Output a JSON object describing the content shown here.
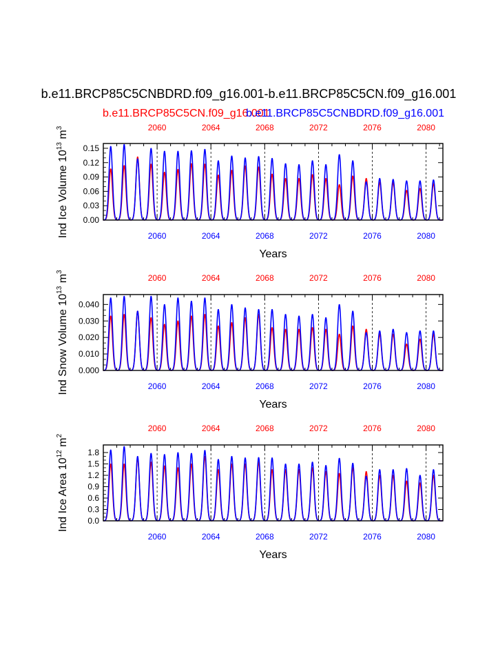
{
  "figure": {
    "title": "b.e11.BRCP85C5CNBDRD.f09_g16.001-b.e11.BRCP85C5CN.f09_g16.001",
    "legend_red": "b.e11.BRCP85C5CN.f09_g16.001",
    "legend_blue": "b.e11.BRCP85C5CNBDRD.f09_g16.001",
    "colors": {
      "red": "#ff0000",
      "blue": "#0000ff",
      "axis": "#000000"
    }
  },
  "chart_data": [
    {
      "type": "line",
      "id": "ice-volume",
      "title": "",
      "xlabel": "Years",
      "ylabel": "Ind Ice Volume 10^13 m^3",
      "ylabel_parts": {
        "base": "Ind Ice Volume 10",
        "exp1": "13",
        "mid": " m",
        "exp2": "3"
      },
      "xlim": [
        2056.0,
        2081.25
      ],
      "ylim": [
        0,
        0.16
      ],
      "yticks": [
        0.0,
        0.03,
        0.06,
        0.09,
        0.12,
        0.15
      ],
      "yticklabels": [
        "0.00",
        "0.03",
        "0.06",
        "0.09",
        "0.12",
        "0.15"
      ],
      "xticks": [
        2060,
        2064,
        2068,
        2072,
        2076,
        2080
      ],
      "xticklabels": [
        "2060",
        "2064",
        "2068",
        "2072",
        "2076",
        "2080"
      ],
      "annual_peaks_x": [
        2056.55,
        2057.55,
        2058.55,
        2059.55,
        2060.55,
        2061.55,
        2062.55,
        2063.55,
        2064.55,
        2065.55,
        2066.55,
        2067.55,
        2068.55,
        2069.55,
        2070.55,
        2071.55,
        2072.55,
        2073.55,
        2074.55,
        2075.55,
        2076.55,
        2077.55,
        2078.55,
        2079.55,
        2080.55
      ],
      "series": [
        {
          "name": "b.e11.BRCP85C5CN.f09_g16.001",
          "color": "#ff0000",
          "values": [
            0.107,
            0.114,
            0.132,
            0.117,
            0.1,
            0.106,
            0.118,
            0.117,
            0.094,
            0.104,
            0.113,
            0.111,
            0.096,
            0.087,
            0.087,
            0.095,
            0.087,
            0.074,
            0.092,
            0.087,
            0.079,
            0.078,
            0.062,
            0.066,
            0.076
          ]
        },
        {
          "name": "b.e11.BRCP85C5CNBDRD.f09_g16.001",
          "color": "#0000ff",
          "values": [
            0.154,
            0.158,
            0.128,
            0.15,
            0.144,
            0.144,
            0.145,
            0.148,
            0.124,
            0.134,
            0.13,
            0.133,
            0.129,
            0.118,
            0.116,
            0.124,
            0.116,
            0.137,
            0.124,
            0.08,
            0.087,
            0.085,
            0.082,
            0.082,
            0.084
          ]
        }
      ]
    },
    {
      "type": "line",
      "id": "snow-volume",
      "title": "",
      "xlabel": "Years",
      "ylabel": "Ind Snow Volume 10^13 m^3",
      "ylabel_parts": {
        "base": "Ind Snow Volume 10",
        "exp1": "13",
        "mid": " m",
        "exp2": "3"
      },
      "xlim": [
        2056.0,
        2081.25
      ],
      "ylim": [
        0,
        0.046
      ],
      "yticks": [
        0.0,
        0.01,
        0.02,
        0.03,
        0.04
      ],
      "yticklabels": [
        "0.000",
        "0.010",
        "0.020",
        "0.030",
        "0.040"
      ],
      "xticks": [
        2060,
        2064,
        2068,
        2072,
        2076,
        2080
      ],
      "xticklabels": [
        "2060",
        "2064",
        "2068",
        "2072",
        "2076",
        "2080"
      ],
      "annual_peaks_x": [
        2056.55,
        2057.55,
        2058.55,
        2059.55,
        2060.55,
        2061.55,
        2062.55,
        2063.55,
        2064.55,
        2065.55,
        2066.55,
        2067.55,
        2068.55,
        2069.55,
        2070.55,
        2071.55,
        2072.55,
        2073.55,
        2074.55,
        2075.55,
        2076.55,
        2077.55,
        2078.55,
        2079.55,
        2080.55
      ],
      "series": [
        {
          "name": "b.e11.BRCP85C5CN.f09_g16.001",
          "color": "#ff0000",
          "values": [
            0.033,
            0.034,
            0.036,
            0.032,
            0.028,
            0.03,
            0.033,
            0.034,
            0.027,
            0.029,
            0.032,
            0.034,
            0.026,
            0.025,
            0.025,
            0.026,
            0.025,
            0.022,
            0.027,
            0.025,
            0.022,
            0.022,
            0.016,
            0.019,
            0.022
          ]
        },
        {
          "name": "b.e11.BRCP85C5CNBDRD.f09_g16.001",
          "color": "#0000ff",
          "values": [
            0.044,
            0.045,
            0.036,
            0.045,
            0.04,
            0.044,
            0.042,
            0.044,
            0.037,
            0.04,
            0.038,
            0.037,
            0.037,
            0.034,
            0.033,
            0.034,
            0.032,
            0.04,
            0.036,
            0.023,
            0.024,
            0.025,
            0.023,
            0.024,
            0.024
          ]
        }
      ]
    },
    {
      "type": "line",
      "id": "ice-area",
      "title": "",
      "xlabel": "Years",
      "ylabel": "Ind Ice Area 10^12 m^2",
      "ylabel_parts": {
        "base": "Ind Ice Area 10",
        "exp1": "12",
        "mid": " m",
        "exp2": "2"
      },
      "xlim": [
        2056.0,
        2081.25
      ],
      "ylim": [
        0,
        2.0
      ],
      "yticks": [
        0.0,
        0.3,
        0.6,
        0.9,
        1.2,
        1.5,
        1.8
      ],
      "yticklabels": [
        "0.0",
        "0.3",
        "0.6",
        "0.9",
        "1.2",
        "1.5",
        "1.8"
      ],
      "xticks": [
        2060,
        2064,
        2068,
        2072,
        2076,
        2080
      ],
      "xticklabels": [
        "2060",
        "2064",
        "2068",
        "2072",
        "2076",
        "2080"
      ],
      "annual_peaks_x": [
        2056.55,
        2057.55,
        2058.55,
        2059.55,
        2060.55,
        2061.55,
        2062.55,
        2063.55,
        2064.55,
        2065.55,
        2066.55,
        2067.55,
        2068.55,
        2069.55,
        2070.55,
        2071.55,
        2072.55,
        2073.55,
        2074.55,
        2075.55,
        2076.55,
        2077.55,
        2078.55,
        2079.55,
        2080.55
      ],
      "series": [
        {
          "name": "b.e11.BRCP85C5CN.f09_g16.001",
          "color": "#ff0000",
          "values": [
            1.5,
            1.5,
            1.65,
            1.55,
            1.45,
            1.4,
            1.5,
            1.7,
            1.35,
            1.5,
            1.5,
            1.55,
            1.35,
            1.35,
            1.35,
            1.4,
            1.3,
            1.25,
            1.4,
            1.3,
            1.2,
            1.2,
            1.05,
            1.0,
            1.2
          ]
        },
        {
          "name": "b.e11.BRCP85C5CNBDRD.f09_g16.001",
          "color": "#0000ff",
          "values": [
            1.87,
            1.96,
            1.7,
            1.78,
            1.75,
            1.8,
            1.78,
            1.86,
            1.62,
            1.7,
            1.66,
            1.67,
            1.66,
            1.5,
            1.5,
            1.55,
            1.46,
            1.65,
            1.52,
            1.18,
            1.35,
            1.35,
            1.38,
            1.2,
            1.35
          ]
        }
      ]
    }
  ]
}
